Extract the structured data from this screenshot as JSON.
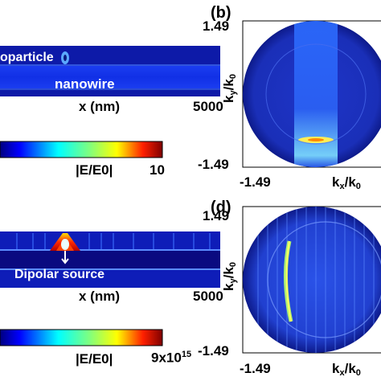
{
  "panel_top": {
    "nanoparticle_label": "oparticle",
    "nanowire_label": "nanowire",
    "x_label": "x (nm)",
    "x_max": "5000",
    "colorbar_label": "|E/E0|",
    "colorbar_max": "10"
  },
  "panel_b": {
    "letter": "(b)",
    "y_top": "1.49",
    "y_bottom": "-1.49",
    "x_left": "-1.49",
    "y_axis_base": "k",
    "y_axis_sub_y": "y",
    "y_axis_slash": "/k",
    "y_axis_sub_0": "0",
    "x_axis_base": "k",
    "x_axis_sub_x": "x",
    "x_axis_slash": "/k",
    "x_axis_sub_0": "0"
  },
  "panel_bottom": {
    "source_label": "Dipolar source",
    "x_label": "x (nm)",
    "x_max": "5000",
    "colorbar_label": "|E/E0|",
    "colorbar_max_base": "9x10",
    "colorbar_max_exp": "15"
  },
  "panel_d": {
    "letter": "(d)",
    "y_top": "1.49",
    "y_bottom": "-1.49",
    "x_left": "-1.49",
    "y_axis_base": "k",
    "y_axis_sub_y": "y",
    "y_axis_slash": "/k",
    "y_axis_sub_0": "0",
    "x_axis_base": "k",
    "x_axis_sub_x": "x",
    "x_axis_slash": "/k",
    "x_axis_sub_0": "0"
  },
  "colors": {
    "field_dark": "#0a0a8c",
    "field_blue": "#1530e0",
    "jet_red": "#8b0000",
    "background": "#ffffff"
  }
}
